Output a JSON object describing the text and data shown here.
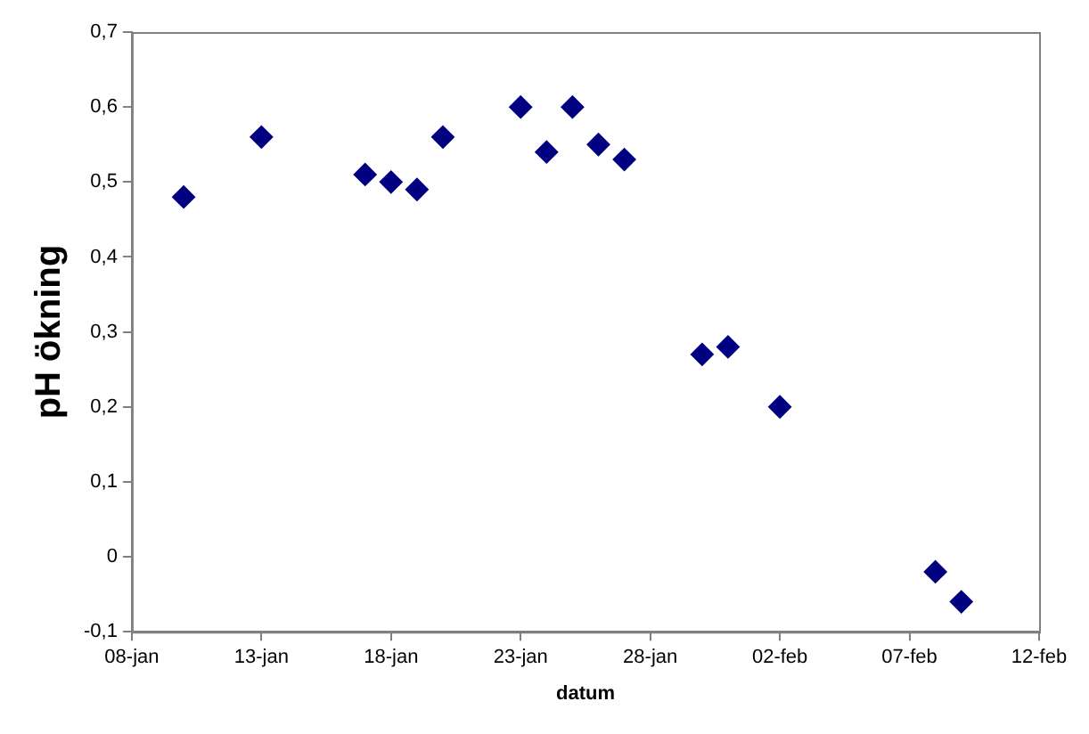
{
  "chart_data": {
    "type": "scatter",
    "xlabel": "datum",
    "ylabel": "pH ökning",
    "x": [
      "--01-10",
      "--01-13",
      "--01-17",
      "--01-18",
      "--01-19",
      "--01-20",
      "--01-23",
      "--01-24",
      "--01-25",
      "--01-26",
      "--01-27",
      "--01-30",
      "--01-31",
      "--02-02",
      "--02-08",
      "--02-09"
    ],
    "values": [
      0.48,
      0.56,
      0.51,
      0.5,
      0.49,
      0.56,
      0.6,
      0.54,
      0.6,
      0.55,
      0.53,
      0.27,
      0.28,
      0.2,
      -0.02,
      -0.06
    ],
    "color": "#000080",
    "marker": "diamond",
    "grid": false,
    "legend": false,
    "xlim": [
      "--01-08",
      "--02-12"
    ],
    "xticks": [
      {
        "value": "--01-08",
        "label": "08-jan"
      },
      {
        "value": "--01-13",
        "label": "13-jan"
      },
      {
        "value": "--01-18",
        "label": "18-jan"
      },
      {
        "value": "--01-23",
        "label": "23-jan"
      },
      {
        "value": "--01-28",
        "label": "28-jan"
      },
      {
        "value": "--02-02",
        "label": "02-feb"
      },
      {
        "value": "--02-07",
        "label": "07-feb"
      },
      {
        "value": "--02-12",
        "label": "12-feb"
      }
    ],
    "ylim": [
      -0.1,
      0.7
    ],
    "yticks": [
      {
        "value": -0.1,
        "label": "-0,1"
      },
      {
        "value": 0,
        "label": "0"
      },
      {
        "value": 0.1,
        "label": "0,1"
      },
      {
        "value": 0.2,
        "label": "0,2"
      },
      {
        "value": 0.3,
        "label": "0,3"
      },
      {
        "value": 0.4,
        "label": "0,4"
      },
      {
        "value": 0.5,
        "label": "0,5"
      },
      {
        "value": 0.6,
        "label": "0,6"
      },
      {
        "value": 0.7,
        "label": "0,7"
      }
    ]
  }
}
